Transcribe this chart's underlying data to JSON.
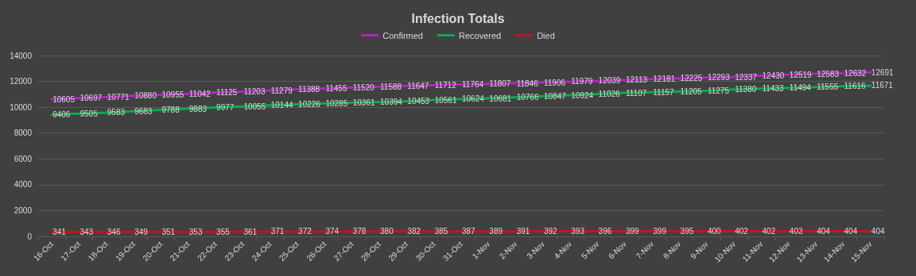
{
  "chart_data": {
    "type": "line",
    "title": "Infection Totals",
    "categories": [
      "16-Oct",
      "17-Oct",
      "18-Oct",
      "19-Oct",
      "20-Oct",
      "21-Oct",
      "22-Oct",
      "23-Oct",
      "24-Oct",
      "25-Oct",
      "26-Oct",
      "27-Oct",
      "28-Oct",
      "29-Oct",
      "30-Oct",
      "31-Oct",
      "1-Nov",
      "2-Nov",
      "3-Nov",
      "4-Nov",
      "5-Nov",
      "6-Nov",
      "7-Nov",
      "8-Nov",
      "9-Nov",
      "10-Nov",
      "11-Nov",
      "12-Nov",
      "13-Nov",
      "14-Nov",
      "15-Nov"
    ],
    "series": [
      {
        "name": "Confirmed",
        "color": "#b026c0",
        "values": [
          10605,
          10697,
          10771,
          10880,
          10955,
          11042,
          11125,
          11203,
          11279,
          11388,
          11455,
          11520,
          11588,
          11647,
          11712,
          11764,
          11807,
          11846,
          11906,
          11979,
          12039,
          12113,
          12181,
          12225,
          12293,
          12337,
          12430,
          12519,
          12583,
          12632,
          12691
        ]
      },
      {
        "name": "Recovered",
        "color": "#10a84e",
        "values": [
          9406,
          9505,
          9583,
          9683,
          9788,
          9883,
          9977,
          10055,
          10144,
          10226,
          10285,
          10361,
          10394,
          10453,
          10561,
          10624,
          10681,
          10766,
          10847,
          10924,
          11026,
          11107,
          11157,
          11205,
          11275,
          11380,
          11433,
          11494,
          11555,
          11616,
          11671
        ]
      },
      {
        "name": "Died",
        "color": "#c0161c",
        "values": [
          341,
          343,
          346,
          349,
          351,
          353,
          355,
          361,
          371,
          372,
          374,
          378,
          380,
          382,
          385,
          387,
          389,
          391,
          392,
          393,
          396,
          399,
          399,
          395,
          400,
          402,
          402,
          403,
          404,
          404,
          404
        ]
      }
    ],
    "ylim": [
      0,
      14000
    ],
    "yticks": [
      0,
      2000,
      4000,
      6000,
      8000,
      10000,
      12000,
      14000
    ],
    "grid": "y",
    "legend": "top",
    "data_labels": true,
    "marker": "none",
    "line_style": "solid"
  }
}
